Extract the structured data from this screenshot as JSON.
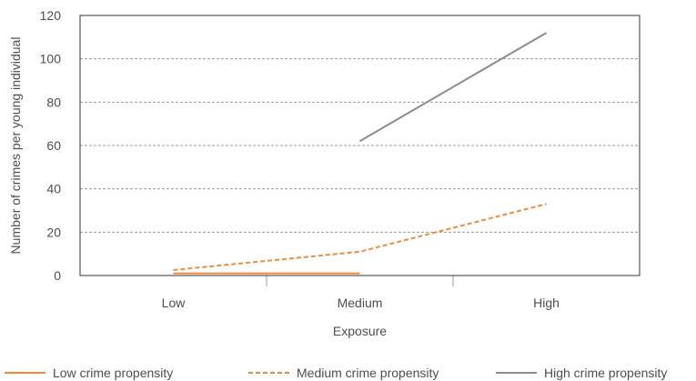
{
  "chart_data": {
    "type": "line",
    "title": "",
    "xlabel": "Exposure",
    "ylabel": "Number of crimes per young individual",
    "categories": [
      "Low",
      "Medium",
      "High"
    ],
    "ylim": [
      0,
      120
    ],
    "yticks": [
      0,
      20,
      40,
      60,
      80,
      100,
      120
    ],
    "grid": true,
    "legend_position": "bottom",
    "series": [
      {
        "name": "Low crime propensity",
        "values": [
          1,
          1,
          null
        ],
        "color": "#f0893a",
        "style": "solid"
      },
      {
        "name": "Medium crime propensity",
        "values": [
          2.5,
          11,
          33
        ],
        "color": "#f0893a",
        "style": "dashed"
      },
      {
        "name": "High crime propensity",
        "values": [
          null,
          62,
          112
        ],
        "color": "#8c8c8c",
        "style": "solid"
      }
    ]
  }
}
